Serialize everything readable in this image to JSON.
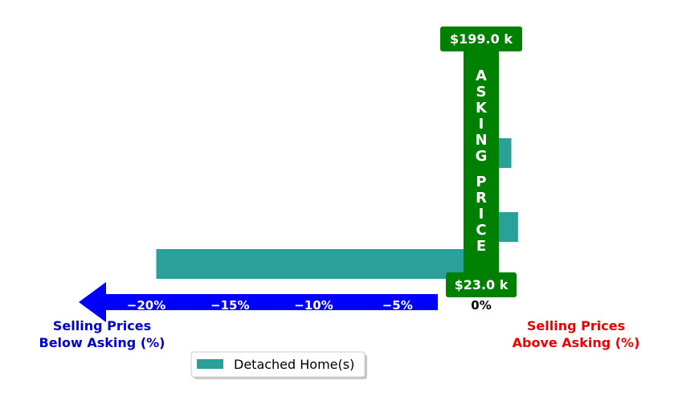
{
  "chart_data": {
    "type": "bar",
    "orientation": "horizontal",
    "series": [
      {
        "name": "Detached Home(s)",
        "values": [
          1.0,
          1.0,
          1.8,
          1.0,
          2.2,
          -19.4
        ]
      }
    ],
    "xlim": [
      -23.5,
      5
    ],
    "xticks": [
      "−20%",
      "−15%",
      "−10%",
      "−5%"
    ],
    "xtick_values": [
      -20,
      -15,
      -10,
      -5
    ],
    "zero_label": "0%",
    "left_label": [
      "Selling Prices",
      "Below Asking (%)"
    ],
    "right_label": [
      "Selling Prices",
      "Above Asking (%)"
    ],
    "asking_price_text": "ASKING PRICE",
    "price_top_label": "$199.0 k",
    "price_bottom_label": "$23.0 k",
    "legend_placement": "bottom-center",
    "grid": false
  },
  "colors": {
    "bar": "#2aa198",
    "asking_band": "#008000",
    "below_arrow": "#0000ff",
    "below_text": "#0000cc",
    "above_text": "#ee0000"
  }
}
